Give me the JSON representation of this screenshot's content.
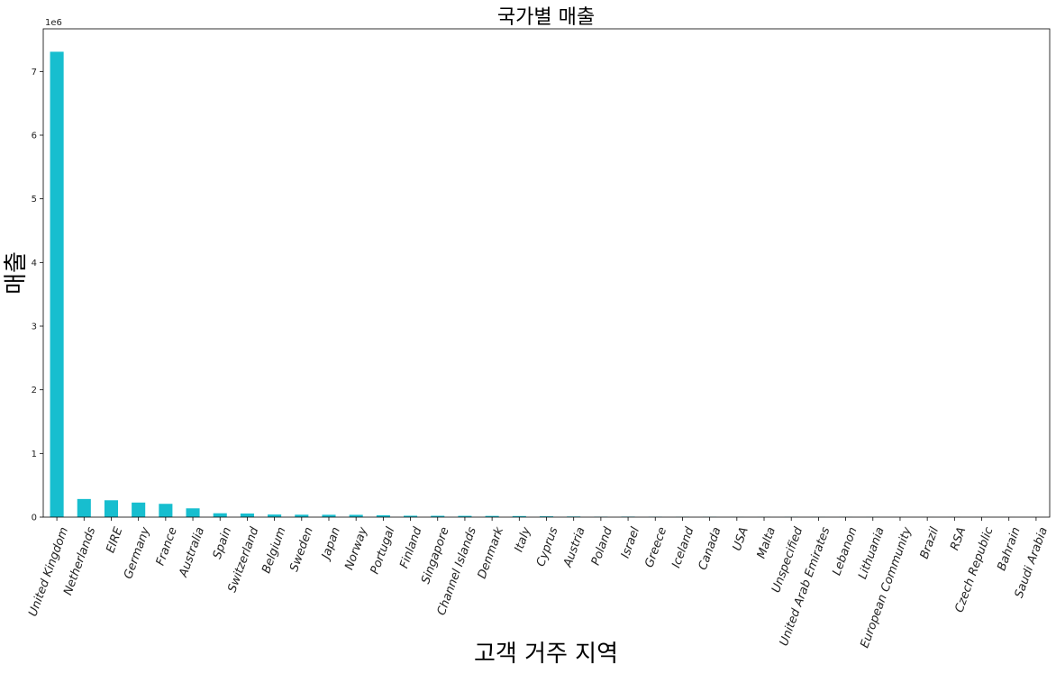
{
  "chart_data": {
    "type": "bar",
    "title": "국가별 매출",
    "xlabel": "고객 거주 지역",
    "ylabel": "매출",
    "y_offset_label": "1e6",
    "ylim": [
      0,
      7.67
    ],
    "y_scale_multiplier": 1000000,
    "yticks": [
      0,
      1,
      2,
      3,
      4,
      5,
      6,
      7
    ],
    "grid": false,
    "bar_color": "#17becf",
    "categories": [
      "United Kingdom",
      "Netherlands",
      "EIRE",
      "Germany",
      "France",
      "Australia",
      "Spain",
      "Switzerland",
      "Belgium",
      "Sweden",
      "Japan",
      "Norway",
      "Portugal",
      "Finland",
      "Singapore",
      "Channel Islands",
      "Denmark",
      "Italy",
      "Cyprus",
      "Austria",
      "Poland",
      "Israel",
      "Greece",
      "Iceland",
      "Canada",
      "USA",
      "Malta",
      "Unspecified",
      "United Arab Emirates",
      "Lebanon",
      "Lithuania",
      "European Community",
      "Brazil",
      "RSA",
      "Czech Republic",
      "Bahrain",
      "Saudi Arabia"
    ],
    "values": [
      7.31,
      0.285,
      0.265,
      0.229,
      0.209,
      0.138,
      0.061,
      0.057,
      0.041,
      0.038,
      0.037,
      0.036,
      0.03,
      0.022,
      0.021,
      0.02,
      0.019,
      0.017,
      0.013,
      0.01,
      0.007,
      0.008,
      0.005,
      0.004,
      0.004,
      0.002,
      0.002,
      0.003,
      0.002,
      0.002,
      0.002,
      0.001,
      0.001,
      0.001,
      0.0008,
      0.0005,
      0.0001
    ]
  }
}
